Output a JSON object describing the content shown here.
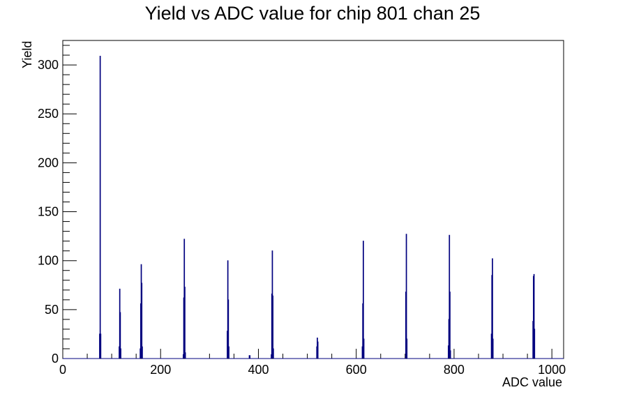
{
  "chart_data": {
    "type": "histogram",
    "title": "Yield vs ADC value for chip 801 chan 25",
    "xlabel": "ADC value",
    "ylabel": "Yield",
    "xlim": [
      0,
      1024
    ],
    "ylim": [
      0,
      325
    ],
    "xticks": [
      0,
      200,
      400,
      600,
      800,
      1000
    ],
    "yticks": [
      0,
      50,
      100,
      150,
      200,
      250,
      300
    ],
    "legend": "none",
    "grid": false,
    "line_color": "#00007f",
    "bins": [
      {
        "x": 75,
        "y": 25
      },
      {
        "x": 76,
        "y": 309
      },
      {
        "x": 77,
        "y": 25
      },
      {
        "x": 115,
        "y": 12
      },
      {
        "x": 116,
        "y": 71
      },
      {
        "x": 117,
        "y": 47
      },
      {
        "x": 118,
        "y": 10
      },
      {
        "x": 158,
        "y": 10
      },
      {
        "x": 159,
        "y": 56
      },
      {
        "x": 160,
        "y": 96
      },
      {
        "x": 161,
        "y": 77
      },
      {
        "x": 162,
        "y": 12
      },
      {
        "x": 246,
        "y": 4
      },
      {
        "x": 247,
        "y": 62
      },
      {
        "x": 248,
        "y": 122
      },
      {
        "x": 249,
        "y": 73
      },
      {
        "x": 250,
        "y": 6
      },
      {
        "x": 336,
        "y": 28
      },
      {
        "x": 337,
        "y": 100
      },
      {
        "x": 338,
        "y": 60
      },
      {
        "x": 339,
        "y": 12
      },
      {
        "x": 381,
        "y": 3
      },
      {
        "x": 382,
        "y": 3
      },
      {
        "x": 426,
        "y": 4
      },
      {
        "x": 427,
        "y": 66
      },
      {
        "x": 428,
        "y": 110
      },
      {
        "x": 429,
        "y": 64
      },
      {
        "x": 430,
        "y": 10
      },
      {
        "x": 519,
        "y": 12
      },
      {
        "x": 520,
        "y": 21
      },
      {
        "x": 521,
        "y": 17
      },
      {
        "x": 612,
        "y": 12
      },
      {
        "x": 613,
        "y": 56
      },
      {
        "x": 614,
        "y": 120
      },
      {
        "x": 615,
        "y": 20
      },
      {
        "x": 701,
        "y": 68
      },
      {
        "x": 702,
        "y": 127
      },
      {
        "x": 703,
        "y": 20
      },
      {
        "x": 788,
        "y": 13
      },
      {
        "x": 789,
        "y": 40
      },
      {
        "x": 790,
        "y": 126
      },
      {
        "x": 791,
        "y": 68
      },
      {
        "x": 792,
        "y": 8
      },
      {
        "x": 876,
        "y": 25
      },
      {
        "x": 877,
        "y": 85
      },
      {
        "x": 878,
        "y": 102
      },
      {
        "x": 879,
        "y": 20
      },
      {
        "x": 961,
        "y": 38
      },
      {
        "x": 962,
        "y": 84
      },
      {
        "x": 963,
        "y": 86
      },
      {
        "x": 964,
        "y": 30
      }
    ]
  }
}
